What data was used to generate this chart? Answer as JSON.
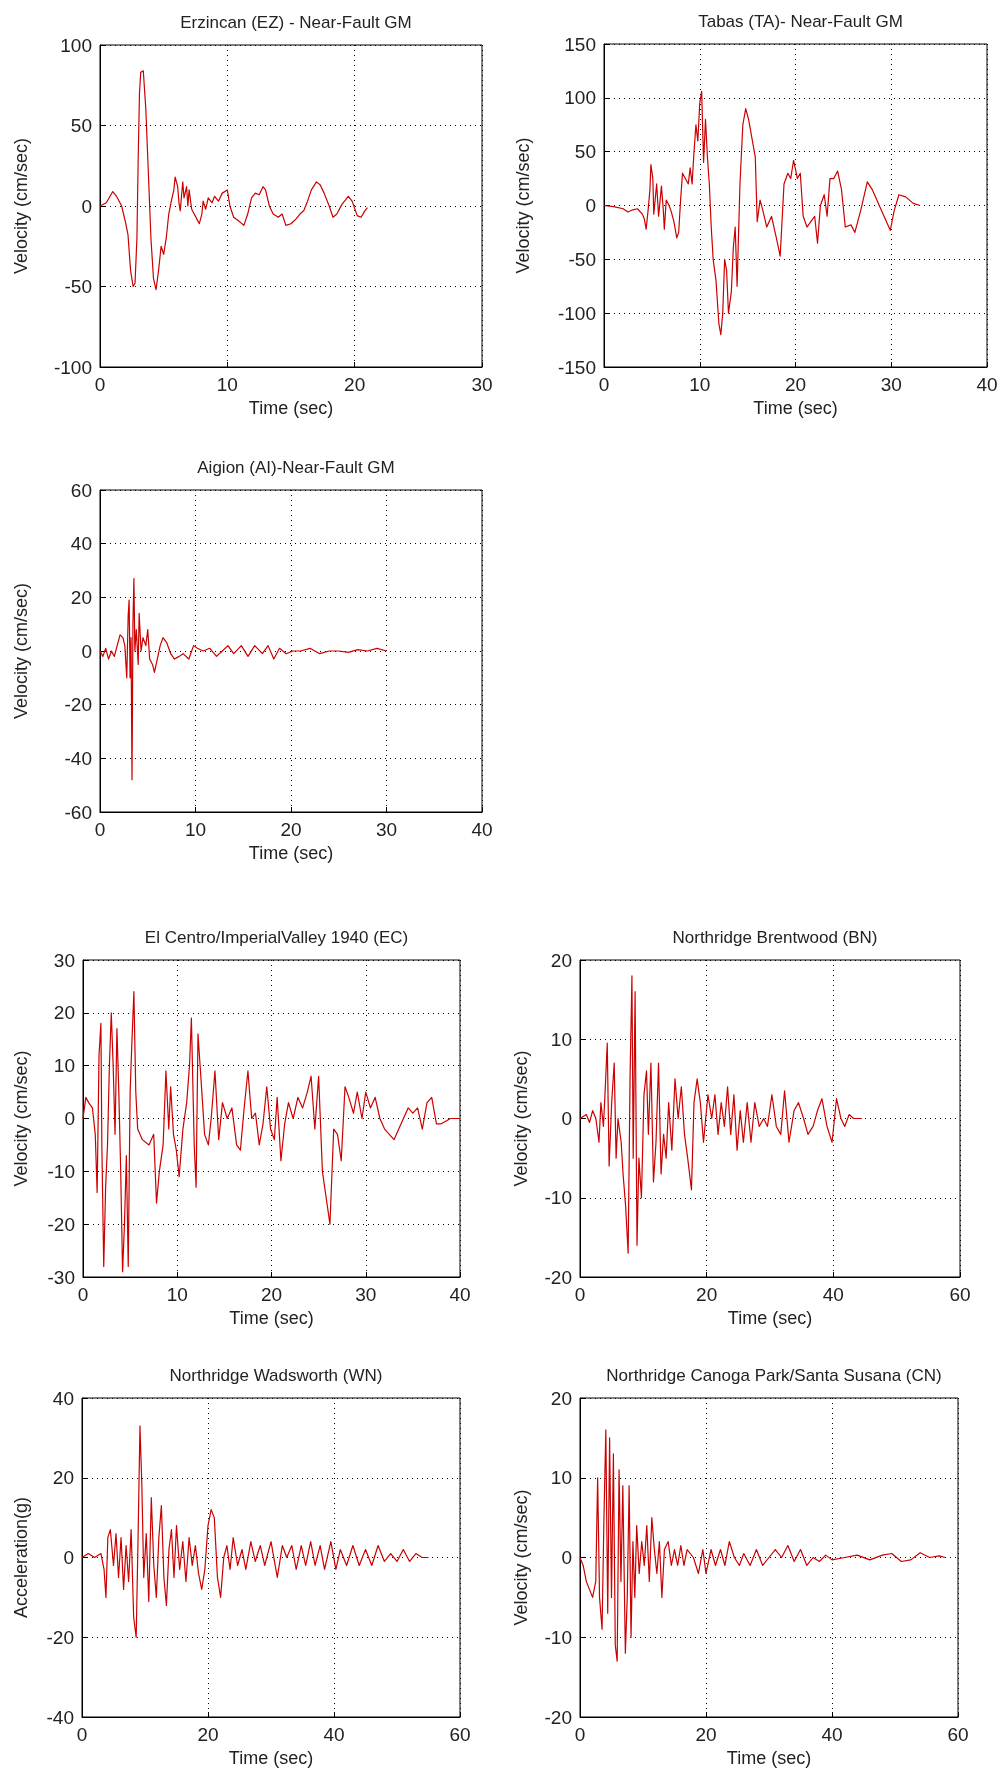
{
  "chart_data": [
    {
      "type": "line",
      "title": "Erzincan (EZ) - Near-Fault GM",
      "xlabel": "Time (sec)",
      "ylabel": "Velocity (cm/sec)",
      "xlim": [
        0,
        30
      ],
      "xticks": [
        0,
        10,
        20,
        30
      ],
      "ylim": [
        -100,
        100
      ],
      "yticks": [
        -100,
        -50,
        0,
        50,
        100
      ],
      "grid": true,
      "series": [
        {
          "color": "#cc0000",
          "x": [
            0,
            0.5,
            1,
            1.3,
            1.7,
            2.0,
            2.2,
            2.4,
            2.6,
            2.75,
            2.9,
            3.0,
            3.1,
            3.2,
            3.4,
            3.6,
            3.8,
            4.0,
            4.2,
            4.4,
            4.6,
            4.8,
            5.0,
            5.2,
            5.4,
            5.6,
            5.8,
            5.9,
            6.1,
            6.2,
            6.3,
            6.5,
            6.6,
            6.8,
            6.9,
            7.0,
            7.2,
            7.4,
            7.6,
            7.8,
            8.0,
            8.1,
            8.3,
            8.5,
            8.8,
            9.0,
            9.3,
            9.6,
            10,
            10.2,
            10.5,
            11,
            11.3,
            11.6,
            11.9,
            12.2,
            12.5,
            12.8,
            13.0,
            13.3,
            13.6,
            14.0,
            14.3,
            14.6,
            15.0,
            15.4,
            15.7,
            16.0,
            16.3,
            16.6,
            17.0,
            17.3,
            17.6,
            18.0,
            18.3,
            18.6,
            19.0,
            19.5,
            19.8,
            20.2,
            20.5,
            20.8,
            21.0
          ],
          "values": [
            0,
            2,
            9,
            6,
            0,
            -10,
            -18,
            -40,
            -50,
            -48,
            -20,
            30,
            70,
            83,
            84,
            60,
            20,
            -20,
            -45,
            -52,
            -40,
            -25,
            -30,
            -20,
            -5,
            3,
            10,
            18,
            12,
            2,
            -3,
            15,
            5,
            12,
            0,
            10,
            -2,
            -5,
            -8,
            -11,
            -5,
            3,
            -2,
            5,
            2,
            6,
            3,
            8,
            10,
            0,
            -7,
            -10,
            -12,
            -5,
            5,
            8,
            7,
            12,
            10,
            0,
            -5,
            -7,
            -5,
            -12,
            -11,
            -8,
            -5,
            -3,
            3,
            10,
            15,
            13,
            8,
            0,
            -7,
            -5,
            1,
            6,
            3,
            -6,
            -7,
            -3,
            -1
          ]
        }
      ]
    },
    {
      "type": "line",
      "title": "Tabas (TA)- Near-Fault GM",
      "xlabel": "Time (sec)",
      "ylabel": "Velocity (cm/sec)",
      "xlim": [
        0,
        40
      ],
      "xticks": [
        0,
        10,
        20,
        30,
        40
      ],
      "ylim": [
        -150,
        150
      ],
      "yticks": [
        -150,
        -100,
        -50,
        0,
        50,
        100,
        150
      ],
      "grid": true,
      "series": [
        {
          "color": "#cc0000",
          "x": [
            0,
            1,
            2,
            2.5,
            3,
            3.5,
            4,
            4.2,
            4.4,
            4.6,
            4.8,
            4.9,
            5.1,
            5.2,
            5.5,
            5.7,
            6.0,
            6.2,
            6.3,
            6.5,
            6.8,
            7.0,
            7.3,
            7.6,
            7.8,
            8.0,
            8.2,
            8.5,
            8.8,
            9.0,
            9.2,
            9.4,
            9.6,
            9.8,
            10.0,
            10.2,
            10.4,
            10.6,
            10.8,
            11.0,
            11.2,
            11.4,
            11.7,
            12.0,
            12.2,
            12.4,
            12.6,
            12.8,
            13.0,
            13.3,
            13.5,
            13.7,
            13.9,
            14.2,
            14.5,
            14.8,
            15.1,
            15.5,
            15.8,
            16.0,
            16.3,
            16.6,
            17.0,
            17.5,
            18.0,
            18.4,
            18.8,
            19.2,
            19.5,
            19.8,
            20.2,
            20.5,
            20.8,
            21.2,
            21.6,
            22.0,
            22.3,
            22.6,
            23.0,
            23.3,
            23.6,
            24.0,
            24.4,
            24.8,
            25.2,
            25.8,
            26.2,
            26.8,
            27.5,
            28.0,
            28.5,
            29.0,
            29.5,
            29.9,
            30.3,
            30.8,
            31.5,
            32.3,
            33.0
          ],
          "values": [
            0,
            -1,
            -3,
            -6,
            -4,
            -3,
            -8,
            -12,
            -22,
            -5,
            15,
            38,
            25,
            -8,
            20,
            -10,
            18,
            -5,
            -22,
            5,
            0,
            -5,
            -15,
            -30,
            -25,
            5,
            30,
            25,
            20,
            35,
            20,
            50,
            75,
            60,
            95,
            106,
            40,
            80,
            45,
            20,
            -20,
            -50,
            -70,
            -110,
            -120,
            -100,
            -50,
            -60,
            -100,
            -80,
            -40,
            -20,
            -75,
            20,
            75,
            90,
            80,
            60,
            45,
            -15,
            5,
            -5,
            -20,
            -10,
            -30,
            -47,
            20,
            30,
            25,
            42,
            25,
            30,
            -10,
            -20,
            -15,
            -10,
            -35,
            0,
            10,
            -10,
            25,
            25,
            32,
            15,
            -20,
            -18,
            -25,
            -5,
            22,
            15,
            5,
            -5,
            -15,
            -23,
            -5,
            10,
            8,
            2,
            0
          ]
        }
      ]
    },
    {
      "type": "line",
      "title": "Aigion (AI)-Near-Fault GM",
      "xlabel": "Time (sec)",
      "ylabel": "Velocity (cm/sec)",
      "xlim": [
        0,
        40
      ],
      "xticks": [
        0,
        10,
        20,
        30,
        40
      ],
      "ylim": [
        -60,
        60
      ],
      "yticks": [
        -60,
        -40,
        -20,
        0,
        20,
        40,
        60
      ],
      "grid": true,
      "series": [
        {
          "color": "#cc0000",
          "x": [
            0,
            0.3,
            0.6,
            0.9,
            1.2,
            1.5,
            1.8,
            2.1,
            2.4,
            2.6,
            2.8,
            2.95,
            3.05,
            3.15,
            3.25,
            3.35,
            3.45,
            3.55,
            3.65,
            3.8,
            4.0,
            4.1,
            4.3,
            4.5,
            4.8,
            5.0,
            5.2,
            5.5,
            5.7,
            6.0,
            6.3,
            6.6,
            7.0,
            7.4,
            7.8,
            8.3,
            8.7,
            9.3,
            9.8,
            10.2,
            10.8,
            11.5,
            12.2,
            12.8,
            13.4,
            14,
            14.8,
            15.5,
            16.2,
            17,
            17.6,
            18.2,
            18.8,
            19.5,
            20.2,
            21,
            22,
            23,
            24,
            25,
            26,
            27,
            28,
            29,
            30
          ],
          "values": [
            0,
            -2,
            1,
            -3,
            0,
            -2,
            2,
            6,
            5,
            2,
            -10,
            13,
            19,
            -10,
            5,
            -48,
            10,
            27,
            0,
            8,
            -5,
            14,
            0,
            5,
            2,
            8,
            -3,
            -5,
            -8,
            -3,
            2,
            5,
            3,
            -1,
            -3,
            -2,
            -1,
            -3,
            2,
            1,
            0,
            1,
            -2,
            0,
            2,
            -1,
            2,
            -2,
            2,
            -1,
            2,
            -3,
            1,
            -1,
            0,
            0,
            1,
            -1,
            0,
            0,
            -0.5,
            0.5,
            0,
            1,
            0
          ]
        }
      ]
    },
    {
      "type": "line",
      "title": "El Centro/ImperialValley 1940 (EC)",
      "xlabel": "Time (sec)",
      "ylabel": "Velocity (cm/sec)",
      "xlim": [
        0,
        40
      ],
      "xticks": [
        0,
        10,
        20,
        30,
        40
      ],
      "ylim": [
        -30,
        30
      ],
      "yticks": [
        -30,
        -20,
        -10,
        0,
        10,
        20,
        30
      ],
      "grid": true,
      "series": [
        {
          "color": "#cc0000",
          "x": [
            0,
            0.3,
            0.6,
            1.0,
            1.3,
            1.5,
            1.7,
            1.9,
            2.0,
            2.2,
            2.4,
            2.6,
            2.8,
            3.0,
            3.2,
            3.4,
            3.6,
            3.8,
            4.0,
            4.2,
            4.4,
            4.6,
            4.8,
            5.0,
            5.2,
            5.4,
            5.6,
            5.8,
            6.3,
            7.0,
            7.5,
            7.8,
            8.1,
            8.5,
            8.8,
            9.1,
            9.3,
            9.6,
            9.9,
            10.2,
            10.6,
            11.0,
            11.3,
            11.5,
            11.8,
            12.0,
            12.2,
            12.5,
            12.9,
            13.3,
            13.6,
            14.0,
            14.4,
            14.8,
            15.3,
            15.8,
            16.3,
            16.7,
            17.1,
            17.5,
            17.9,
            18.3,
            18.7,
            19.1,
            19.5,
            19.9,
            20.3,
            20.6,
            21.0,
            21.4,
            21.8,
            22.3,
            22.8,
            23.3,
            23.8,
            24.2,
            24.6,
            25.0,
            25.4,
            25.8,
            26.2,
            26.6,
            27.0,
            27.4,
            27.8,
            28.2,
            28.7,
            29.1,
            29.6,
            30.0,
            30.5,
            31.0,
            31.5,
            32.0,
            32.5,
            33.0,
            33.5,
            34.0,
            34.5,
            35.0,
            35.5,
            36.0,
            36.5,
            37.0,
            37.5,
            38.0,
            39,
            40
          ],
          "values": [
            0,
            4,
            3,
            2,
            -3,
            -14,
            12,
            18,
            -5,
            -28,
            -13,
            -5,
            10,
            20,
            10,
            -3,
            17,
            5,
            -10,
            -29,
            -20,
            -7,
            -28,
            5,
            15,
            24,
            5,
            -2,
            -4,
            -5,
            -3,
            -16,
            -10,
            -5,
            9,
            -2,
            6,
            -3,
            -6,
            -11,
            -2,
            3,
            10,
            19,
            -5,
            -13,
            16,
            8,
            -3,
            -5,
            0,
            9,
            -4,
            3,
            0,
            2,
            -5,
            -6,
            2,
            9,
            0,
            1,
            -5,
            -1,
            6,
            -2,
            -4,
            4,
            -8,
            -1,
            3,
            0,
            4,
            2,
            5,
            8,
            -2,
            8,
            -10,
            -15,
            -20,
            -2,
            -3,
            -8,
            6,
            4,
            1,
            5,
            0,
            5,
            2,
            4,
            0,
            -2,
            -3,
            -4,
            -2,
            0,
            2,
            1,
            2,
            -2,
            3,
            4,
            -1,
            -1,
            0,
            0
          ]
        }
      ]
    },
    {
      "type": "line",
      "title": "Northridge Brentwood (BN)",
      "xlabel": "Time (sec)",
      "ylabel": "Velocity (cm/sec)",
      "xlim": [
        0,
        60
      ],
      "xticks": [
        0,
        20,
        40,
        60
      ],
      "ylim": [
        -20,
        20
      ],
      "yticks": [
        -20,
        -10,
        0,
        10,
        20
      ],
      "grid": true,
      "series": [
        {
          "color": "#cc0000",
          "x": [
            0,
            1,
            1.5,
            2,
            2.5,
            3,
            3.3,
            3.7,
            4.0,
            4.3,
            4.6,
            5.0,
            5.4,
            5.7,
            6.0,
            6.5,
            6.8,
            7.2,
            7.6,
            7.9,
            8.2,
            8.4,
            8.7,
            9.0,
            9.3,
            9.7,
            10.1,
            10.5,
            10.8,
            11.2,
            11.6,
            12.0,
            12.4,
            12.8,
            13.2,
            13.6,
            14.0,
            14.5,
            15.0,
            15.5,
            16.0,
            16.5,
            17.0,
            17.6,
            18.0,
            18.5,
            19.0,
            19.5,
            20.2,
            20.8,
            21.3,
            21.8,
            22.3,
            22.8,
            23.3,
            23.8,
            24.3,
            24.8,
            25.3,
            25.8,
            26.4,
            27.0,
            27.6,
            28.3,
            29,
            29.6,
            30.3,
            31,
            31.7,
            32.3,
            33,
            33.8,
            34.5,
            35.3,
            36,
            36.8,
            37.5,
            38.2,
            39,
            39.8,
            40.5,
            41.2,
            41.8,
            42.5,
            43.2,
            44.5
          ],
          "values": [
            0,
            0.5,
            -0.5,
            1,
            0,
            -3,
            2,
            -1,
            4,
            9.5,
            -6,
            2,
            7,
            -5,
            0,
            -3,
            -7,
            -11,
            -17,
            5,
            18,
            -5,
            16,
            -16,
            -5,
            -10,
            3,
            6,
            -2,
            7,
            -8,
            -3,
            7,
            -7,
            -2,
            -5,
            2,
            -4,
            5,
            0,
            4,
            -2,
            -5,
            -9,
            2,
            5,
            2,
            -3,
            3,
            0,
            3,
            -2,
            2,
            -1,
            4,
            -2,
            3,
            -4,
            1,
            -3,
            2,
            -3,
            2,
            -1,
            0,
            -1,
            3,
            -1,
            -2,
            3.5,
            -3,
            1,
            2,
            0,
            -2,
            -1,
            1,
            2.5,
            -1,
            -3,
            2.5,
            0,
            -1,
            0.5,
            0,
            0
          ]
        }
      ]
    },
    {
      "type": "line",
      "title": "Northridge Wadsworth (WN)",
      "xlabel": "Time (sec)",
      "ylabel": "Acceleration(g)",
      "xlim": [
        0,
        60
      ],
      "xticks": [
        0,
        20,
        40,
        60
      ],
      "ylim": [
        -40,
        40
      ],
      "yticks": [
        -40,
        -20,
        0,
        20,
        40
      ],
      "grid": true,
      "series": [
        {
          "color": "#cc0000",
          "x": [
            0,
            1,
            2,
            3,
            3.5,
            3.8,
            4.1,
            4.5,
            5.0,
            5.4,
            5.8,
            6.2,
            6.6,
            7.0,
            7.4,
            7.8,
            8.2,
            8.6,
            8.9,
            9.2,
            9.5,
            9.8,
            10.2,
            10.6,
            11.0,
            11.4,
            11.8,
            12.2,
            12.6,
            13.0,
            13.4,
            13.8,
            14.2,
            14.6,
            15.0,
            15.5,
            16.0,
            16.5,
            17.0,
            17.5,
            18.0,
            18.5,
            19.0,
            19.5,
            20.0,
            20.5,
            21.0,
            21.5,
            22.0,
            22.5,
            23.0,
            23.5,
            24.0,
            24.7,
            25.4,
            26,
            26.8,
            27.5,
            28.3,
            29,
            30,
            31,
            31.8,
            32.5,
            33.3,
            34,
            34.8,
            35.5,
            36.3,
            37,
            37.8,
            38.5,
            39.5,
            40.3,
            41,
            42,
            43,
            44,
            45,
            46,
            47,
            48,
            49,
            50,
            51,
            52,
            53,
            54,
            55
          ],
          "values": [
            0,
            1,
            0,
            1,
            -3,
            -10,
            5,
            7,
            -2,
            6,
            -5,
            5,
            -8,
            3,
            -6,
            7,
            -15,
            -20,
            5,
            33,
            18,
            -5,
            6,
            -11,
            15,
            -2,
            -10,
            5,
            13,
            -5,
            -12,
            2,
            7,
            -5,
            8,
            -3,
            4,
            -6,
            5,
            -2,
            3,
            -4,
            -8,
            -3,
            8,
            12,
            10,
            -5,
            -10,
            0,
            3,
            -3,
            5,
            -2,
            2,
            -3,
            4,
            -1,
            3,
            -2,
            4,
            -5,
            3,
            0,
            3,
            -3,
            3,
            -2,
            4,
            -2,
            3,
            -3,
            4,
            -3,
            2,
            -2,
            3,
            -2,
            2,
            -2,
            3,
            -1,
            1,
            -1,
            2,
            -1,
            1,
            0,
            0
          ]
        }
      ]
    },
    {
      "type": "line",
      "title": "Northridge Canoga Park/Santa Susana (CN)",
      "xlabel": "Time (sec)",
      "ylabel": "Velocity (cm/sec)",
      "xlim": [
        0,
        60
      ],
      "xticks": [
        0,
        20,
        40,
        60
      ],
      "ylim": [
        -20,
        20
      ],
      "yticks": [
        -20,
        -10,
        0,
        10,
        20
      ],
      "grid": true,
      "series": [
        {
          "color": "#cc0000",
          "x": [
            0,
            0.5,
            1.0,
            1.5,
            2.0,
            2.5,
            2.8,
            3.1,
            3.5,
            3.8,
            4.1,
            4.4,
            4.7,
            5.0,
            5.3,
            5.6,
            5.9,
            6.2,
            6.5,
            6.8,
            7.2,
            7.5,
            7.8,
            8.1,
            8.4,
            8.7,
            9.0,
            9.4,
            9.8,
            10.2,
            10.6,
            11.0,
            11.4,
            11.8,
            12.2,
            12.6,
            13,
            13.4,
            14,
            14.5,
            15,
            15.5,
            16,
            16.5,
            17,
            18,
            18.8,
            19.5,
            20,
            20.8,
            21.5,
            22.3,
            23,
            23.7,
            24.5,
            25.3,
            26,
            27,
            28,
            29,
            30,
            31,
            32,
            33,
            34,
            35,
            36,
            37,
            38,
            39,
            40,
            42,
            44,
            46,
            48,
            49.5,
            51,
            52.5,
            54,
            55.5,
            57,
            58
          ],
          "values": [
            0,
            -1,
            -3,
            -4,
            -5,
            -3,
            10,
            -5,
            -9,
            5,
            16,
            -7,
            15,
            -5,
            13,
            -11,
            -13,
            11,
            -3,
            9,
            -12,
            -5,
            9,
            -10,
            2,
            -5,
            4,
            -2,
            2,
            -1,
            4,
            -3,
            5,
            1,
            -2,
            2,
            -5,
            1,
            2,
            -1,
            1,
            -1,
            1.5,
            -1,
            1,
            0,
            -2,
            1,
            -2,
            1,
            -1,
            1,
            -1,
            2,
            0,
            -1,
            0.5,
            -1,
            1,
            -1,
            0,
            1,
            0,
            1.5,
            -0.5,
            1,
            -1,
            0,
            -0.5,
            0.3,
            -0.3,
            0,
            0.3,
            -0.3,
            0.3,
            0.5,
            -0.5,
            -0.3,
            0.6,
            0,
            0.2,
            0
          ]
        }
      ]
    }
  ]
}
